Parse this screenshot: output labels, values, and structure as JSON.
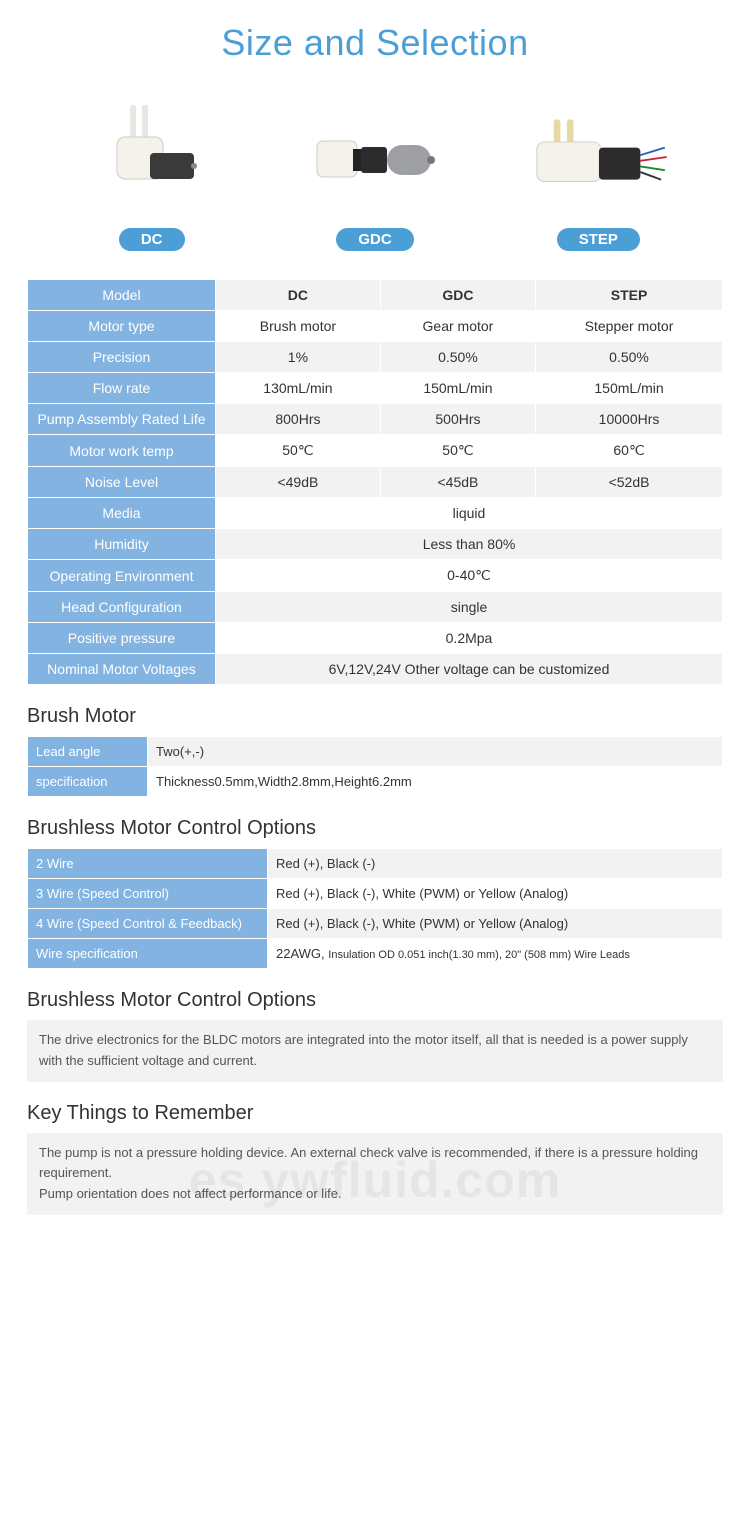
{
  "title": "Size and Selection",
  "products": [
    {
      "key": "dc",
      "label": "DC"
    },
    {
      "key": "gdc",
      "label": "GDC"
    },
    {
      "key": "step",
      "label": "STEP"
    }
  ],
  "spec_table": {
    "header": {
      "label": "Model",
      "cols": [
        "DC",
        "GDC",
        "STEP"
      ]
    },
    "rows": [
      {
        "label": "Motor type",
        "vals": [
          "Brush motor",
          "Gear motor",
          "Stepper motor"
        ]
      },
      {
        "label": "Precision",
        "vals": [
          "1%",
          "0.50%",
          "0.50%"
        ]
      },
      {
        "label": "Flow rate",
        "vals": [
          "130mL/min",
          "150mL/min",
          "150mL/min"
        ]
      },
      {
        "label": "Pump Assembly Rated Life",
        "vals": [
          "800Hrs",
          "500Hrs",
          "10000Hrs"
        ]
      },
      {
        "label": "Motor work temp",
        "vals": [
          "50℃",
          "50℃",
          "60℃"
        ]
      },
      {
        "label": "Noise Level",
        "vals": [
          "<49dB",
          "<45dB",
          "<52dB"
        ]
      },
      {
        "label": "Media",
        "span": "liquid"
      },
      {
        "label": "Humidity",
        "span": "Less than 80%"
      },
      {
        "label": "Operating Environment",
        "span": "0-40℃"
      },
      {
        "label": "Head Configuration",
        "span": "single"
      },
      {
        "label": "Positive pressure",
        "span": "0.2Mpa"
      },
      {
        "label": "Nominal Motor Voltages",
        "span": "6V,12V,24V Other voltage can be customized"
      }
    ]
  },
  "brush_motor": {
    "title": "Brush Motor",
    "rows": [
      {
        "k": "Lead angle",
        "v": "Two(+,-)"
      },
      {
        "k": "specification",
        "v": "Thickness0.5mm,Width2.8mm,Height6.2mm"
      }
    ]
  },
  "bmco": {
    "title": "Brushless Motor Control Options",
    "rows": [
      {
        "k": "2 Wire",
        "v": "Red (+), Black (-)"
      },
      {
        "k": "3 Wire (Speed Control)",
        "v": "Red (+), Black (-), White (PWM) or Yellow (Analog)"
      },
      {
        "k": "4 Wire (Speed Control & Feedback)",
        "v": "Red (+), Black (-), White (PWM) or Yellow (Analog)"
      },
      {
        "k": "Wire specification",
        "v_pref": "22AWG, ",
        "v_small": "Insulation OD 0.051 inch(1.30 mm), 20\" (508 mm) Wire Leads"
      }
    ]
  },
  "bmco_note": {
    "title": "Brushless Motor Control Options",
    "text": "The drive electronics for the BLDC motors are integrated into the motor itself, all that is needed is a power supply with the sufficient voltage and current."
  },
  "key_things": {
    "title": "Key Things to Remember",
    "lines": [
      "The pump is not a pressure holding device. An external check valve is recommended, if there is a pressure holding requirement.",
      "Pump orientation does not affect performance or life."
    ]
  },
  "watermark": "es.ywfluid.com",
  "colors": {
    "accent": "#4b9fd6",
    "header_cell": "#83b3e0",
    "alt_row": "#f2f2f2"
  }
}
